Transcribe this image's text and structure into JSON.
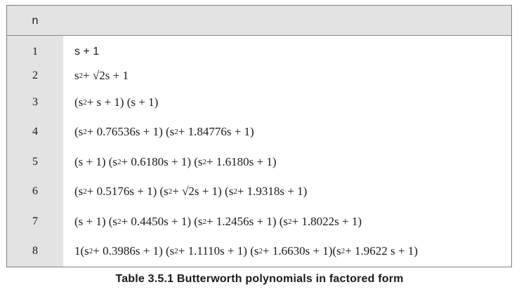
{
  "table": {
    "header_n": "n",
    "rows": [
      {
        "n": "1",
        "poly": "s + 1"
      },
      {
        "n": "2",
        "poly": "s^2 + √2s + 1"
      },
      {
        "n": "3",
        "poly": "(s^2 + s + 1) (s + 1)"
      },
      {
        "n": "4",
        "poly": "(s^2 + 0.76536s + 1) (s^2 + 1.84776s + 1)"
      },
      {
        "n": "5",
        "poly": "(s + 1) (s^2 + 0.6180s + 1) (s^2 + 1.6180s + 1)"
      },
      {
        "n": "6",
        "poly": "(s^2 + 0.5176s + 1) (s^2 + √2s + 1) (s^2 + 1.9318s + 1)"
      },
      {
        "n": "7",
        "poly": "(s + 1) (s^2 + 0.4450s + 1) (s^2 + 1.2456s + 1) (s^2 + 1.8022s + 1)"
      },
      {
        "n": "8",
        "poly": "1(s^2 + 0.3986s + 1) (s^2 + 1.1110s + 1) (s^2 + 1.6630s + 1)(s^2 + 1.9622 s + 1)"
      }
    ]
  },
  "caption": "Table 3.5.1 Butterworth polynomials in factored form"
}
